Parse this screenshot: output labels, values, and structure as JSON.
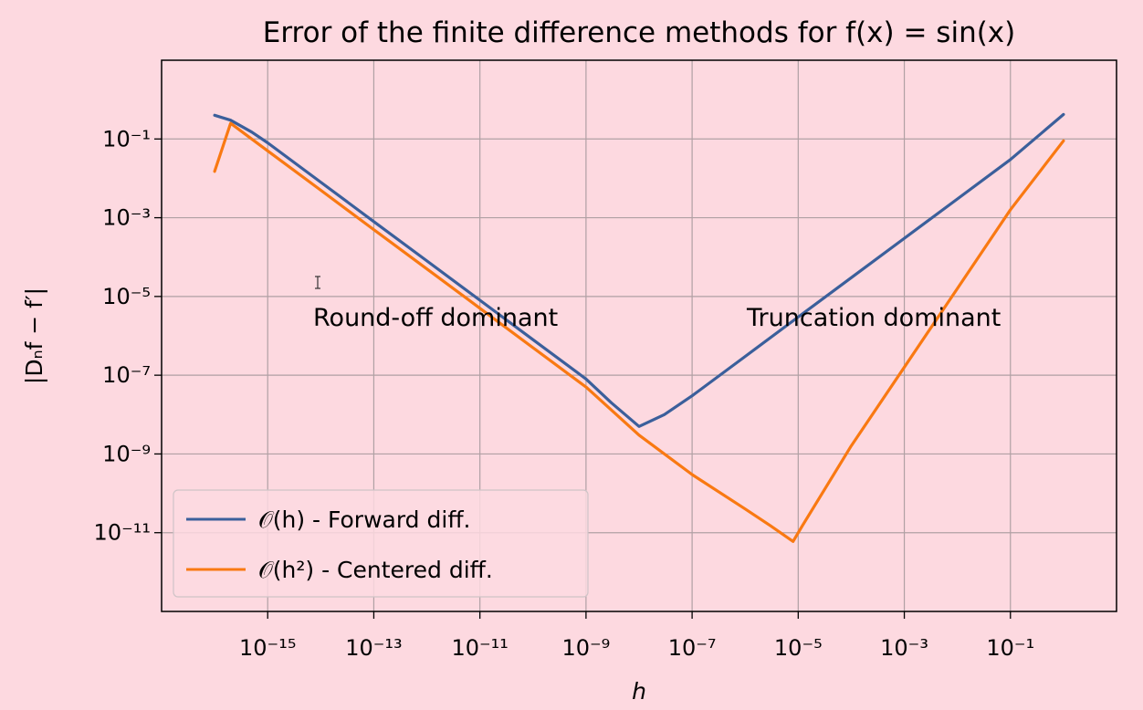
{
  "colors": {
    "background": "#fdd9e0",
    "forward": "#3b5f9b",
    "centered": "#f97912",
    "grid": "#b0a0a4"
  },
  "chart_data": {
    "type": "line",
    "title": "Error of the finite difference methods for f(x) = sin(x)",
    "xlabel": "h",
    "ylabel": "|Dₙf − f′|",
    "x_scale": "log",
    "y_scale": "log",
    "xlim": [
      1e-17,
      10
    ],
    "ylim": [
      1e-13,
      10.0
    ],
    "x_ticks": [
      1e-15,
      1e-13,
      1e-11,
      1e-09,
      1e-07,
      1e-05,
      0.001,
      0.1
    ],
    "x_tick_labels": [
      "10⁻¹⁵",
      "10⁻¹³",
      "10⁻¹¹",
      "10⁻⁹",
      "10⁻⁷",
      "10⁻⁵",
      "10⁻³",
      "10⁻¹"
    ],
    "y_ticks": [
      0.1,
      0.001,
      1e-05,
      1e-07,
      1e-09,
      1e-11
    ],
    "y_tick_labels": [
      "10⁻¹",
      "10⁻³",
      "10⁻⁵",
      "10⁻⁷",
      "10⁻⁹",
      "10⁻¹¹"
    ],
    "grid": true,
    "legend_position": "lower-left",
    "series": [
      {
        "name": "𝒪(h) - Forward diff.",
        "color": "#3b5f9b",
        "x": [
          1e-16,
          2e-16,
          5e-16,
          1e-15,
          1e-14,
          1e-13,
          1e-12,
          1e-11,
          1e-10,
          1e-09,
          3e-09,
          1e-08,
          3e-08,
          1e-07,
          1e-06,
          1e-05,
          0.0001,
          0.001,
          0.01,
          0.1,
          1
        ],
        "y": [
          0.4,
          0.3,
          0.15,
          0.08,
          0.008,
          0.0008,
          8e-05,
          8e-06,
          8e-07,
          8e-08,
          2e-08,
          5e-09,
          1e-08,
          3e-08,
          3e-07,
          3e-06,
          3e-05,
          0.0003,
          0.003,
          0.03,
          0.42
        ]
      },
      {
        "name": "𝒪(h²) -  Centered diff.",
        "color": "#f97912",
        "x": [
          1e-16,
          2e-16,
          5e-16,
          1e-15,
          1e-14,
          1e-13,
          1e-12,
          1e-11,
          1e-10,
          1e-09,
          1e-08,
          1e-07,
          1e-06,
          3e-06,
          8e-06,
          1.2e-05,
          0.0001,
          0.001,
          0.01,
          0.1,
          1
        ],
        "y": [
          0.015,
          0.25,
          0.1,
          0.05,
          0.005,
          0.0005,
          5e-05,
          5e-06,
          5e-07,
          5e-08,
          3e-09,
          3e-10,
          4e-11,
          1.5e-11,
          6e-12,
          1.5e-11,
          1.6e-09,
          1.6e-07,
          1.6e-05,
          0.0016,
          0.09
        ]
      }
    ],
    "annotations": [
      "Round-off dominant",
      "Truncation dominant"
    ]
  }
}
